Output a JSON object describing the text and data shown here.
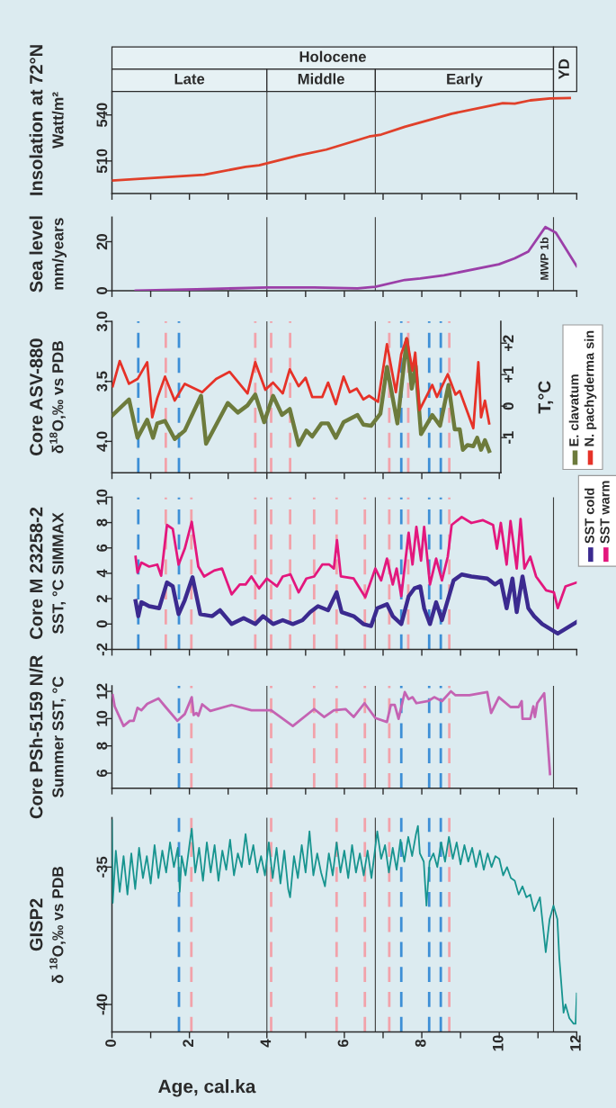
{
  "chart_data": [
    {
      "type": "line",
      "title": "Insolation at 72°N",
      "ylabel": "Watt/m²",
      "xlim": [
        0,
        12
      ],
      "ylim": [
        488.8,
        584.4
      ],
      "xticks": [
        0,
        1,
        2,
        3,
        4,
        5,
        6,
        7,
        8,
        9,
        10,
        11,
        12
      ],
      "yticks": [
        510,
        540
      ],
      "tick_labels": "y",
      "bands": [
        {
          "axis": "x",
          "from": 0,
          "to": 11.4,
          "label": "Holocene",
          "color": "#e6f1f4"
        },
        {
          "axis": "x",
          "from": 0,
          "to": 4,
          "label": "Late",
          "color": "#e6f1f4"
        },
        {
          "axis": "x",
          "from": 4,
          "to": 6.8,
          "label": "Middle",
          "color": "#e6f1f4"
        },
        {
          "axis": "x",
          "from": 6.8,
          "to": 11.4,
          "label": "Early",
          "color": "#e6f1f4"
        },
        {
          "axis": "x",
          "from": 11.4,
          "to": 12,
          "label": "YD",
          "color": "#e6f1f4"
        }
      ],
      "ref_lines": [
        {
          "axis": "x",
          "value": 4,
          "color": "#3c3c3c",
          "line_style": "solid"
        },
        {
          "axis": "x",
          "value": 6.8,
          "color": "#3c3c3c",
          "line_style": "solid"
        },
        {
          "axis": "x",
          "value": 11.4,
          "color": "#3c3c3c",
          "line_style": "solid"
        }
      ],
      "series": [
        {
          "color": "#e0402a",
          "x": [
            0,
            2.38,
            3.45,
            3.8,
            4.82,
            5.53,
            6.64,
            6.95,
            7.56,
            8.77,
            10.09,
            10.4,
            10.8,
            11.31,
            11.82
          ],
          "values": [
            497.2,
            501,
            506.2,
            507.2,
            513.6,
            517.4,
            525.9,
            527.2,
            532.3,
            540.8,
            547.7,
            547.4,
            549.5,
            550.8,
            551
          ]
        }
      ]
    },
    {
      "type": "line",
      "title": "Sea level",
      "ylabel": "mm/years",
      "xlim": [
        0,
        12
      ],
      "ylim": [
        0,
        30
      ],
      "xticks": [
        0,
        1,
        2,
        3,
        4,
        5,
        6,
        7,
        8,
        9,
        10,
        11,
        12
      ],
      "yticks": [
        0,
        20
      ],
      "tick_labels": "y",
      "annotations": [
        {
          "text": "MWP 1b",
          "x": 11.19,
          "y": 26
        }
      ],
      "ref_lines": [
        {
          "axis": "x",
          "value": 4,
          "color": "#3c3c3c",
          "line_style": "solid"
        },
        {
          "axis": "x",
          "value": 6.8,
          "color": "#3c3c3c",
          "line_style": "solid"
        },
        {
          "axis": "x",
          "value": 11.4,
          "color": "#3c3c3c",
          "line_style": "solid"
        }
      ],
      "series": [
        {
          "color": "#9b3fa8",
          "x": [
            0.61,
            2.18,
            4.0,
            5.22,
            6.34,
            6.8,
            7.56,
            7.96,
            8.57,
            9.99,
            10.4,
            10.75,
            11.19,
            11.46,
            12
          ],
          "values": [
            0,
            0.6,
            1.3,
            1.3,
            1.0,
            1.6,
            4.4,
            5.0,
            6.3,
            10.8,
            13.2,
            16.0,
            26.0,
            23.7,
            10.0
          ]
        }
      ]
    },
    {
      "type": "line",
      "title": "Core ASV-880",
      "ylabel": "δ$^{18}$O,‰ vs PDB",
      "y2label": "T,°C",
      "xlim": [
        0,
        10.04
      ],
      "ylim": [
        4.262,
        3.0
      ],
      "xticks": [
        0,
        1,
        2,
        3,
        4,
        5,
        6,
        7,
        8,
        9,
        10
      ],
      "yticks": [
        {
          "value": 3.0,
          "label": "3.0"
        },
        3.5,
        {
          "value": 4.0,
          "label": "4.0"
        }
      ],
      "y2lim": [
        -2.12,
        2.69
      ],
      "y2ticks": [
        {
          "value": -1,
          "label": "-1"
        },
        0,
        {
          "value": 1,
          "label": "+1"
        },
        {
          "value": 2,
          "label": "+2"
        }
      ],
      "tick_labels": "y",
      "legend": "right",
      "ref_lines": [
        {
          "axis": "x",
          "value": 4,
          "color": "#3c3c3c",
          "line_style": "solid"
        },
        {
          "axis": "x",
          "value": 6.8,
          "color": "#3c3c3c",
          "line_style": "solid"
        },
        {
          "axis": "x",
          "value": 1.39,
          "color": "#f2a2aa",
          "line_style": "dashed"
        },
        {
          "axis": "x",
          "value": 3.7,
          "color": "#f2a2aa",
          "line_style": "dashed"
        },
        {
          "axis": "x",
          "value": 4.11,
          "color": "#f2a2aa",
          "line_style": "dashed"
        },
        {
          "axis": "x",
          "value": 4.6,
          "color": "#f2a2aa",
          "line_style": "dashed"
        },
        {
          "axis": "x",
          "value": 7.16,
          "color": "#f2a2aa",
          "line_style": "dashed"
        },
        {
          "axis": "x",
          "value": 7.65,
          "color": "#f2a2aa",
          "line_style": "dashed"
        },
        {
          "axis": "x",
          "value": 8.71,
          "color": "#f2a2aa",
          "line_style": "dashed"
        },
        {
          "axis": "x",
          "value": 0.68,
          "color": "#3d8fd6",
          "line_style": "dashed"
        },
        {
          "axis": "x",
          "value": 1.73,
          "color": "#3d8fd6",
          "line_style": "dashed"
        },
        {
          "axis": "x",
          "value": 7.47,
          "color": "#3d8fd6",
          "line_style": "dashed"
        },
        {
          "axis": "x",
          "value": 8.19,
          "color": "#3d8fd6",
          "line_style": "dashed"
        },
        {
          "axis": "x",
          "value": 8.49,
          "color": "#3d8fd6",
          "line_style": "dashed"
        }
      ],
      "series": [
        {
          "name": "E. clavatum",
          "color": "#6d7b3c",
          "x": [
            0.02,
            0.44,
            0.66,
            0.91,
            1.06,
            1.17,
            1.37,
            1.62,
            1.88,
            2.3,
            2.43,
            2.99,
            3.25,
            3.5,
            3.7,
            3.93,
            4.16,
            4.39,
            4.59,
            4.82,
            5.02,
            5.17,
            5.41,
            5.58,
            5.78,
            5.98,
            6.34,
            6.49,
            6.69,
            6.93,
            7.1,
            7.37,
            7.61,
            7.74,
            7.84,
            7.98,
            8.27,
            8.47,
            8.69,
            8.85,
            8.98,
            9.06,
            9.18,
            9.33,
            9.43,
            9.53,
            9.63,
            9.74
          ],
          "values": [
            3.78,
            3.65,
            3.97,
            3.82,
            3.97,
            3.85,
            3.83,
            3.98,
            3.91,
            3.62,
            4.02,
            3.68,
            3.76,
            3.7,
            3.61,
            3.84,
            3.62,
            3.78,
            3.73,
            4.03,
            3.91,
            3.96,
            3.85,
            3.85,
            3.97,
            3.84,
            3.78,
            3.86,
            3.87,
            3.77,
            3.38,
            3.85,
            3.15,
            3.56,
            3.37,
            3.94,
            3.78,
            3.87,
            3.53,
            3.9,
            3.9,
            4.07,
            4.03,
            4.04,
            3.97,
            4.07,
            3.99,
            4.08
          ]
        },
        {
          "name": "N. pachyderma sin",
          "color": "#e63228",
          "x": [
            0.02,
            0.2,
            0.44,
            0.66,
            0.91,
            1.04,
            1.17,
            1.37,
            1.62,
            1.88,
            2.33,
            2.69,
            3.04,
            3.5,
            3.7,
            3.96,
            4.16,
            4.41,
            4.59,
            4.82,
            5.0,
            5.17,
            5.43,
            5.58,
            5.78,
            5.98,
            6.14,
            6.32,
            6.49,
            6.64,
            6.87,
            7.1,
            7.33,
            7.47,
            7.61,
            7.76,
            7.83,
            7.94,
            8.27,
            8.39,
            8.67,
            8.87,
            8.98,
            9.33,
            9.46,
            9.53,
            9.63,
            9.74
          ],
          "values": [
            3.54,
            3.33,
            3.52,
            3.48,
            3.34,
            3.8,
            3.64,
            3.46,
            3.66,
            3.52,
            3.59,
            3.48,
            3.42,
            3.6,
            3.34,
            3.57,
            3.51,
            3.6,
            3.4,
            3.54,
            3.47,
            3.63,
            3.63,
            3.51,
            3.69,
            3.46,
            3.59,
            3.56,
            3.65,
            3.62,
            3.67,
            3.19,
            3.59,
            3.27,
            3.14,
            3.41,
            3.26,
            3.74,
            3.53,
            3.63,
            3.44,
            3.61,
            3.58,
            3.89,
            3.34,
            3.8,
            3.66,
            3.85
          ]
        }
      ]
    },
    {
      "type": "line",
      "title": "Core M 23258-2",
      "ylabel": "SST, °C SIMMAX",
      "xlim": [
        0,
        12
      ],
      "ylim": [
        -2,
        10
      ],
      "xticks": [
        0,
        1,
        2,
        3,
        4,
        5,
        6,
        7,
        8,
        9,
        10,
        11,
        12
      ],
      "yticks": [
        -2,
        0,
        2,
        4,
        6,
        8,
        10
      ],
      "tick_labels": "y",
      "legend": "top right",
      "ref_lines": [
        {
          "axis": "x",
          "value": 4,
          "color": "#3c3c3c",
          "line_style": "solid"
        },
        {
          "axis": "x",
          "value": 6.8,
          "color": "#3c3c3c",
          "line_style": "solid"
        },
        {
          "axis": "x",
          "value": 11.4,
          "color": "#3c3c3c",
          "line_style": "solid"
        },
        {
          "axis": "x",
          "value": 1.39,
          "color": "#f2a2aa",
          "line_style": "dashed"
        },
        {
          "axis": "x",
          "value": 2.05,
          "color": "#f2a2aa",
          "line_style": "dashed"
        },
        {
          "axis": "x",
          "value": 3.7,
          "color": "#f2a2aa",
          "line_style": "dashed"
        },
        {
          "axis": "x",
          "value": 4.11,
          "color": "#f2a2aa",
          "line_style": "dashed"
        },
        {
          "axis": "x",
          "value": 4.6,
          "color": "#f2a2aa",
          "line_style": "dashed"
        },
        {
          "axis": "x",
          "value": 5.22,
          "color": "#f2a2aa",
          "line_style": "dashed"
        },
        {
          "axis": "x",
          "value": 5.8,
          "color": "#f2a2aa",
          "line_style": "dashed"
        },
        {
          "axis": "x",
          "value": 6.53,
          "color": "#f2a2aa",
          "line_style": "dashed"
        },
        {
          "axis": "x",
          "value": 7.16,
          "color": "#f2a2aa",
          "line_style": "dashed"
        },
        {
          "axis": "x",
          "value": 7.65,
          "color": "#f2a2aa",
          "line_style": "dashed"
        },
        {
          "axis": "x",
          "value": 8.71,
          "color": "#f2a2aa",
          "line_style": "dashed"
        },
        {
          "axis": "x",
          "value": 0.68,
          "color": "#3d8fd6",
          "line_style": "dashed"
        },
        {
          "axis": "x",
          "value": 1.73,
          "color": "#3d8fd6",
          "line_style": "dashed"
        },
        {
          "axis": "x",
          "value": 7.47,
          "color": "#3d8fd6",
          "line_style": "dashed"
        },
        {
          "axis": "x",
          "value": 8.19,
          "color": "#3d8fd6",
          "line_style": "dashed"
        },
        {
          "axis": "x",
          "value": 8.49,
          "color": "#3d8fd6",
          "line_style": "dashed"
        }
      ],
      "series": [
        {
          "name": "SST cold",
          "color": "#3b2a8f",
          "x": [
            0.61,
            0.68,
            0.76,
            0.96,
            1.22,
            1.42,
            1.57,
            1.72,
            1.88,
            2.08,
            2.28,
            2.59,
            2.79,
            3.09,
            3.4,
            3.7,
            3.9,
            4.16,
            4.41,
            4.67,
            4.92,
            5.12,
            5.32,
            5.58,
            5.8,
            5.93,
            6.24,
            6.49,
            6.69,
            6.85,
            7.1,
            7.25,
            7.47,
            7.66,
            7.81,
            7.96,
            8.06,
            8.21,
            8.37,
            8.52,
            8.67,
            8.82,
            9.03,
            9.28,
            9.69,
            9.89,
            10.04,
            10.19,
            10.34,
            10.45,
            10.6,
            10.75,
            10.9,
            11.11,
            11.51,
            12.0
          ],
          "values": [
            1.81,
            0.62,
            1.72,
            1.41,
            1.25,
            3.28,
            2.97,
            0.78,
            1.88,
            3.69,
            0.78,
            0.62,
            1.09,
            0.0,
            0.47,
            0.0,
            0.62,
            0.0,
            0.31,
            0.0,
            0.31,
            0.94,
            1.41,
            1.09,
            2.5,
            0.94,
            0.62,
            0.0,
            -0.16,
            1.25,
            1.56,
            0.62,
            0.0,
            2.19,
            2.81,
            2.97,
            1.25,
            0.0,
            1.72,
            0.31,
            1.88,
            3.44,
            3.91,
            3.75,
            3.59,
            3.12,
            3.44,
            1.25,
            3.59,
            0.94,
            3.75,
            1.25,
            0.62,
            0.0,
            -0.75,
            0.16
          ]
        },
        {
          "name": "SST warm",
          "color": "#e3177d",
          "x": [
            0.61,
            0.66,
            0.76,
            0.96,
            1.17,
            1.27,
            1.42,
            1.57,
            1.72,
            1.88,
            2.06,
            2.23,
            2.38,
            2.64,
            2.84,
            3.09,
            3.3,
            3.45,
            3.6,
            3.8,
            4.0,
            4.26,
            4.41,
            4.61,
            4.82,
            5.02,
            5.22,
            5.43,
            5.61,
            5.73,
            5.81,
            5.91,
            6.24,
            6.54,
            6.8,
            6.95,
            7.1,
            7.25,
            7.35,
            7.47,
            7.66,
            7.76,
            7.86,
            7.98,
            8.06,
            8.21,
            8.37,
            8.52,
            8.67,
            8.77,
            9.03,
            9.28,
            9.58,
            9.84,
            9.94,
            10.04,
            10.19,
            10.29,
            10.45,
            10.55,
            10.65,
            10.8,
            10.95,
            11.21,
            11.41,
            11.51,
            11.71,
            12.0
          ],
          "values": [
            5.3,
            4.06,
            4.84,
            4.53,
            4.69,
            3.81,
            7.81,
            7.5,
            4.69,
            5.94,
            8.06,
            4.53,
            3.75,
            4.22,
            4.38,
            2.34,
            3.12,
            3.12,
            3.75,
            2.81,
            3.59,
            2.97,
            3.75,
            3.91,
            2.5,
            3.59,
            3.75,
            4.69,
            4.69,
            4.38,
            6.62,
            3.75,
            3.59,
            2.12,
            4.38,
            3.44,
            5.16,
            3.12,
            4.38,
            2.19,
            7.19,
            4.69,
            7.66,
            5.0,
            7.66,
            3.12,
            5.16,
            3.44,
            5.31,
            7.81,
            8.44,
            7.97,
            8.19,
            7.81,
            5.94,
            7.97,
            4.69,
            8.12,
            4.38,
            8.28,
            4.38,
            5.31,
            3.75,
            2.66,
            2.5,
            1.25,
            2.97,
            3.28
          ]
        }
      ]
    },
    {
      "type": "line",
      "title": "Core PSh-5159 N/R",
      "ylabel": "Summer SST, °C",
      "xlim": [
        0,
        12
      ],
      "ylim": [
        4.9,
        12.4
      ],
      "xticks": [
        0,
        1,
        2,
        3,
        4,
        5,
        6,
        7,
        8,
        9,
        10,
        11,
        12
      ],
      "yticks": [
        6,
        8,
        10,
        12
      ],
      "tick_labels": "y",
      "ref_lines": [
        {
          "axis": "x",
          "value": 4,
          "color": "#3c3c3c",
          "line_style": "solid"
        },
        {
          "axis": "x",
          "value": 6.8,
          "color": "#3c3c3c",
          "line_style": "solid"
        },
        {
          "axis": "x",
          "value": 11.4,
          "color": "#3c3c3c",
          "line_style": "solid"
        },
        {
          "axis": "x",
          "value": 2.05,
          "color": "#f2a2aa",
          "line_style": "dashed"
        },
        {
          "axis": "x",
          "value": 4.11,
          "color": "#f2a2aa",
          "line_style": "dashed"
        },
        {
          "axis": "x",
          "value": 5.22,
          "color": "#f2a2aa",
          "line_style": "dashed"
        },
        {
          "axis": "x",
          "value": 5.8,
          "color": "#f2a2aa",
          "line_style": "dashed"
        },
        {
          "axis": "x",
          "value": 6.53,
          "color": "#f2a2aa",
          "line_style": "dashed"
        },
        {
          "axis": "x",
          "value": 7.16,
          "color": "#f2a2aa",
          "line_style": "dashed"
        },
        {
          "axis": "x",
          "value": 8.71,
          "color": "#f2a2aa",
          "line_style": "dashed"
        },
        {
          "axis": "x",
          "value": 1.73,
          "color": "#3d8fd6",
          "line_style": "dashed"
        },
        {
          "axis": "x",
          "value": 7.47,
          "color": "#3d8fd6",
          "line_style": "dashed"
        },
        {
          "axis": "x",
          "value": 8.19,
          "color": "#3d8fd6",
          "line_style": "dashed"
        },
        {
          "axis": "x",
          "value": 8.49,
          "color": "#3d8fd6",
          "line_style": "dashed"
        }
      ],
      "series": [
        {
          "color": "#c463b3",
          "x": [
            0.02,
            0.07,
            0.3,
            0.46,
            0.56,
            0.66,
            0.76,
            0.91,
            1.2,
            1.37,
            1.69,
            1.88,
            2.06,
            2.11,
            2.18,
            2.23,
            2.33,
            2.54,
            3.09,
            3.6,
            4.11,
            4.67,
            5.22,
            5.48,
            5.73,
            6.03,
            6.24,
            6.52,
            6.8,
            7.1,
            7.2,
            7.3,
            7.4,
            7.56,
            7.66,
            7.76,
            7.86,
            8.16,
            8.32,
            8.52,
            8.75,
            8.87,
            9.23,
            9.69,
            9.79,
            9.99,
            10.29,
            10.5,
            10.58,
            10.6,
            10.8,
            10.88,
            10.92,
            10.98,
            11.16,
            11.31
          ],
          "values": [
            11.71,
            10.9,
            9.46,
            9.84,
            9.84,
            10.79,
            10.61,
            11.08,
            11.48,
            10.9,
            9.84,
            10.33,
            11.57,
            10.27,
            10.41,
            10.21,
            11.05,
            10.56,
            11.0,
            10.61,
            10.61,
            9.46,
            10.7,
            10.12,
            10.61,
            10.7,
            10.12,
            11.13,
            10.04,
            9.75,
            11.0,
            11.0,
            9.98,
            11.94,
            11.42,
            11.57,
            11.13,
            11.28,
            11.57,
            11.28,
            12.0,
            11.71,
            11.71,
            11.94,
            10.41,
            11.57,
            10.85,
            10.85,
            11.28,
            9.98,
            9.98,
            10.9,
            10.12,
            11.13,
            11.86,
            5.94
          ]
        }
      ]
    },
    {
      "type": "line",
      "title": "GISP2",
      "ylabel": "δ $^{18}$O,‰ vs PDB",
      "xlabel": "Age, cal.ka",
      "xlim": [
        0,
        12
      ],
      "ylim": [
        -41.0,
        -33.2
      ],
      "xticks": [
        0,
        {
          "value": 1,
          "label": null
        },
        2,
        {
          "value": 3,
          "label": null
        },
        4,
        {
          "value": 5,
          "label": null
        },
        6,
        {
          "value": 7,
          "label": null
        },
        8,
        {
          "value": 9,
          "label": null
        },
        10,
        {
          "value": 11,
          "label": null
        },
        12
      ],
      "yticks": [
        -40,
        -35
      ],
      "ref_lines": [
        {
          "axis": "x",
          "value": 4,
          "color": "#3c3c3c",
          "line_style": "solid"
        },
        {
          "axis": "x",
          "value": 6.8,
          "color": "#3c3c3c",
          "line_style": "solid"
        },
        {
          "axis": "x",
          "value": 11.4,
          "color": "#3c3c3c",
          "line_style": "solid"
        },
        {
          "axis": "x",
          "value": 2.05,
          "color": "#f2a2aa",
          "line_style": "dashed"
        },
        {
          "axis": "x",
          "value": 4.11,
          "color": "#f2a2aa",
          "line_style": "dashed"
        },
        {
          "axis": "x",
          "value": 5.8,
          "color": "#f2a2aa",
          "line_style": "dashed"
        },
        {
          "axis": "x",
          "value": 6.53,
          "color": "#f2a2aa",
          "line_style": "dashed"
        },
        {
          "axis": "x",
          "value": 7.16,
          "color": "#f2a2aa",
          "line_style": "dashed"
        },
        {
          "axis": "x",
          "value": 8.71,
          "color": "#f2a2aa",
          "line_style": "dashed"
        },
        {
          "axis": "x",
          "value": 1.73,
          "color": "#3d8fd6",
          "line_style": "dashed"
        },
        {
          "axis": "x",
          "value": 7.47,
          "color": "#3d8fd6",
          "line_style": "dashed"
        },
        {
          "axis": "x",
          "value": 8.19,
          "color": "#3d8fd6",
          "line_style": "dashed"
        },
        {
          "axis": "x",
          "value": 8.49,
          "color": "#3d8fd6",
          "line_style": "dashed"
        }
      ],
      "series": [
        {
          "color": "#17948f",
          "x": [
            0.0,
            0.02,
            0.1,
            0.2,
            0.3,
            0.4,
            0.5,
            0.6,
            0.7,
            0.8,
            0.9,
            1.0,
            1.1,
            1.2,
            1.3,
            1.4,
            1.5,
            1.6,
            1.7,
            1.75,
            1.8,
            1.9,
            2.0,
            2.06,
            2.15,
            2.25,
            2.35,
            2.45,
            2.55,
            2.65,
            2.75,
            2.85,
            2.95,
            3.05,
            3.15,
            3.25,
            3.35,
            3.45,
            3.55,
            3.65,
            3.75,
            3.85,
            3.95,
            4.05,
            4.15,
            4.25,
            4.35,
            4.45,
            4.55,
            4.6,
            4.7,
            4.8,
            4.9,
            5.0,
            5.1,
            5.2,
            5.3,
            5.4,
            5.5,
            5.6,
            5.7,
            5.8,
            5.9,
            6.0,
            6.1,
            6.2,
            6.3,
            6.4,
            6.5,
            6.6,
            6.7,
            6.85,
            6.95,
            7.05,
            7.15,
            7.25,
            7.35,
            7.45,
            7.55,
            7.65,
            7.75,
            7.85,
            7.9,
            7.95,
            8.05,
            8.12,
            8.2,
            8.3,
            8.4,
            8.5,
            8.6,
            8.7,
            8.8,
            8.9,
            9.0,
            9.1,
            9.2,
            9.3,
            9.4,
            9.5,
            9.6,
            9.7,
            9.8,
            9.9,
            10.0,
            10.1,
            10.2,
            10.3,
            10.4,
            10.5,
            10.6,
            10.7,
            10.8,
            10.9,
            11.05,
            11.2,
            11.3,
            11.4,
            11.5,
            11.55,
            11.66,
            11.71,
            11.81,
            11.92,
            11.97,
            12.0
          ],
          "values": [
            -33.3,
            -36.3,
            -34.4,
            -35.9,
            -34.6,
            -36.0,
            -34.5,
            -35.8,
            -34.3,
            -35.4,
            -34.6,
            -35.6,
            -34.2,
            -35.4,
            -34.4,
            -35.2,
            -34.1,
            -35.0,
            -34.3,
            -35.9,
            -34.6,
            -35.3,
            -34.2,
            -33.6,
            -35.2,
            -34.3,
            -35.5,
            -34.1,
            -35.2,
            -34.2,
            -35.5,
            -34.4,
            -35.1,
            -34.0,
            -35.3,
            -34.5,
            -35.0,
            -33.8,
            -34.9,
            -34.2,
            -35.2,
            -34.6,
            -35.3,
            -34.1,
            -35.4,
            -34.3,
            -35.6,
            -34.4,
            -35.8,
            -36.1,
            -34.6,
            -35.4,
            -34.2,
            -35.2,
            -33.7,
            -35.3,
            -34.5,
            -35.2,
            -35.7,
            -34.5,
            -35.3,
            -34.1,
            -35.2,
            -34.4,
            -35.4,
            -34.2,
            -35.2,
            -34.5,
            -35.3,
            -34.4,
            -35.4,
            -33.7,
            -34.7,
            -34.2,
            -35.2,
            -34.3,
            -35.1,
            -34.0,
            -34.8,
            -33.9,
            -34.6,
            -33.8,
            -33.5,
            -34.5,
            -34.8,
            -36.4,
            -34.8,
            -34.5,
            -35.0,
            -34.1,
            -34.8,
            -33.9,
            -34.7,
            -34.1,
            -34.9,
            -34.2,
            -34.8,
            -34.3,
            -35.0,
            -34.4,
            -35.1,
            -34.5,
            -35.0,
            -34.6,
            -34.7,
            -35.3,
            -35.0,
            -35.4,
            -35.5,
            -36.0,
            -35.7,
            -36.1,
            -36.0,
            -36.6,
            -36.1,
            -38.1,
            -36.9,
            -36.4,
            -36.9,
            -38.3,
            -40.3,
            -40.0,
            -40.5,
            -40.7,
            -40.7,
            -39.6
          ]
        }
      ]
    }
  ]
}
